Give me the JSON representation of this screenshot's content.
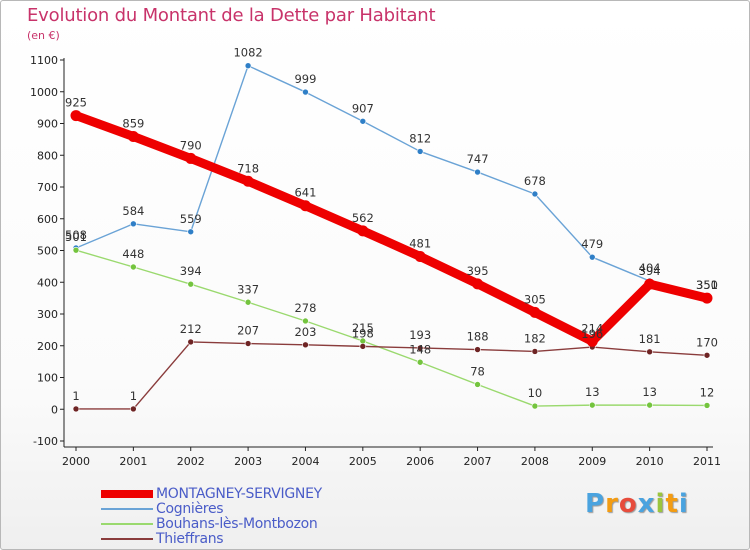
{
  "chart_data": {
    "type": "line",
    "title": "Evolution du Montant de la Dette par Habitant",
    "subtitle": "(en €)",
    "x": [
      "2000",
      "2001",
      "2002",
      "2003",
      "2004",
      "2005",
      "2006",
      "2007",
      "2008",
      "2009",
      "2010",
      "2011"
    ],
    "ylim": [
      -100,
      1100
    ],
    "yticks": [
      -100,
      0,
      100,
      200,
      300,
      400,
      500,
      600,
      700,
      800,
      900,
      1000,
      1100
    ],
    "series": [
      {
        "name": "Cognières",
        "color": "#6aa3d6",
        "marker": "#2f7fc7",
        "values": [
          508,
          584,
          559,
          1082,
          999,
          907,
          812,
          747,
          678,
          479,
          404,
          351
        ],
        "labels": [
          "508",
          "584",
          "559",
          "1082",
          "999",
          "907",
          "812",
          "747",
          "678",
          "479",
          "404",
          "351"
        ]
      },
      {
        "name": "Bouhans-lès-Montbozon",
        "color": "#9ad96e",
        "marker": "#74c43e",
        "values": [
          501,
          448,
          394,
          337,
          278,
          215,
          148,
          78,
          10,
          13,
          13,
          12
        ],
        "labels": [
          "501",
          "448",
          "394",
          "337",
          "278",
          "215",
          "148",
          "78",
          "10",
          "13",
          "13",
          "12"
        ]
      },
      {
        "name": "Thieffrans",
        "color": "#8a3c3c",
        "marker": "#6e2424",
        "values": [
          1,
          1,
          212,
          207,
          203,
          198,
          193,
          188,
          182,
          196,
          181,
          170
        ],
        "labels": [
          "1",
          "1",
          "212",
          "207",
          "203",
          "198",
          "193",
          "188",
          "182",
          "196",
          "181",
          "170"
        ]
      },
      {
        "name": "MONTAGNEY-SERVIGNEY",
        "color": "#ee0000",
        "marker": "#ee0000",
        "highlight": true,
        "values": [
          925,
          859,
          790,
          718,
          641,
          562,
          481,
          395,
          305,
          214,
          394,
          350
        ],
        "labels": [
          "925",
          "859",
          "790",
          "718",
          "641",
          "562",
          "481",
          "395",
          "305",
          "214",
          "394",
          "350"
        ]
      }
    ],
    "legend": [
      "MONTAGNEY-SERVIGNEY",
      "Cognières",
      "Bouhans-lès-Montbozon",
      "Thieffrans"
    ],
    "legend_position": "bottom-left",
    "grid": false
  },
  "brand": {
    "letters": [
      "P",
      "r",
      "o",
      "x",
      "i",
      "t",
      "i"
    ],
    "colors": [
      "#4aa3df",
      "#f39c12",
      "#e74c3c",
      "#4aa3df",
      "#9bc53d",
      "#f39c12",
      "#4aa3df"
    ]
  }
}
